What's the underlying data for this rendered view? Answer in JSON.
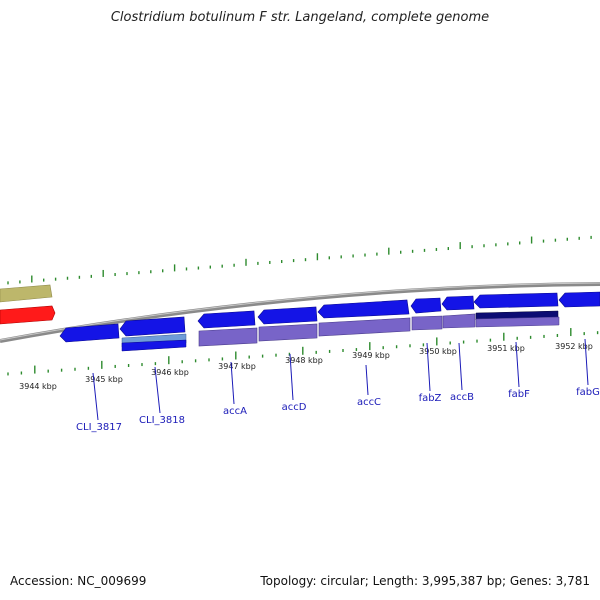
{
  "title": "Clostridium botulinum F str. Langeland, complete genome",
  "footer": {
    "accession": "Accession: NC_009699",
    "summary": "Topology: circular; Length: 3,995,387 bp; Genes: 3,781"
  },
  "colors": {
    "backbone": "#8a8a8a",
    "gene_blue": "#1414e6",
    "gene_dark": "#0c0c73",
    "gene_light": "#7864c8",
    "tick_green": "#2e8b2e",
    "label_blue": "#1b1bb8",
    "bar_olive": "#bdb76b",
    "bar_red": "#ff1a1a"
  },
  "scale_ticks": [
    {
      "label": "3944 kbp"
    },
    {
      "label": "3945 kbp"
    },
    {
      "label": "3946 kbp"
    },
    {
      "label": "3947 kbp"
    },
    {
      "label": "3948 kbp"
    },
    {
      "label": "3949 kbp"
    },
    {
      "label": "3950 kbp"
    },
    {
      "label": "3951 kbp"
    },
    {
      "label": "3952 kbp"
    }
  ],
  "gene_labels": [
    {
      "label": "CLI_3817"
    },
    {
      "label": "CLI_3818"
    },
    {
      "label": "accA"
    },
    {
      "label": "accD"
    },
    {
      "label": "accC"
    },
    {
      "label": "fabZ"
    },
    {
      "label": "accB"
    },
    {
      "label": "fabF"
    },
    {
      "label": "fabG"
    }
  ]
}
